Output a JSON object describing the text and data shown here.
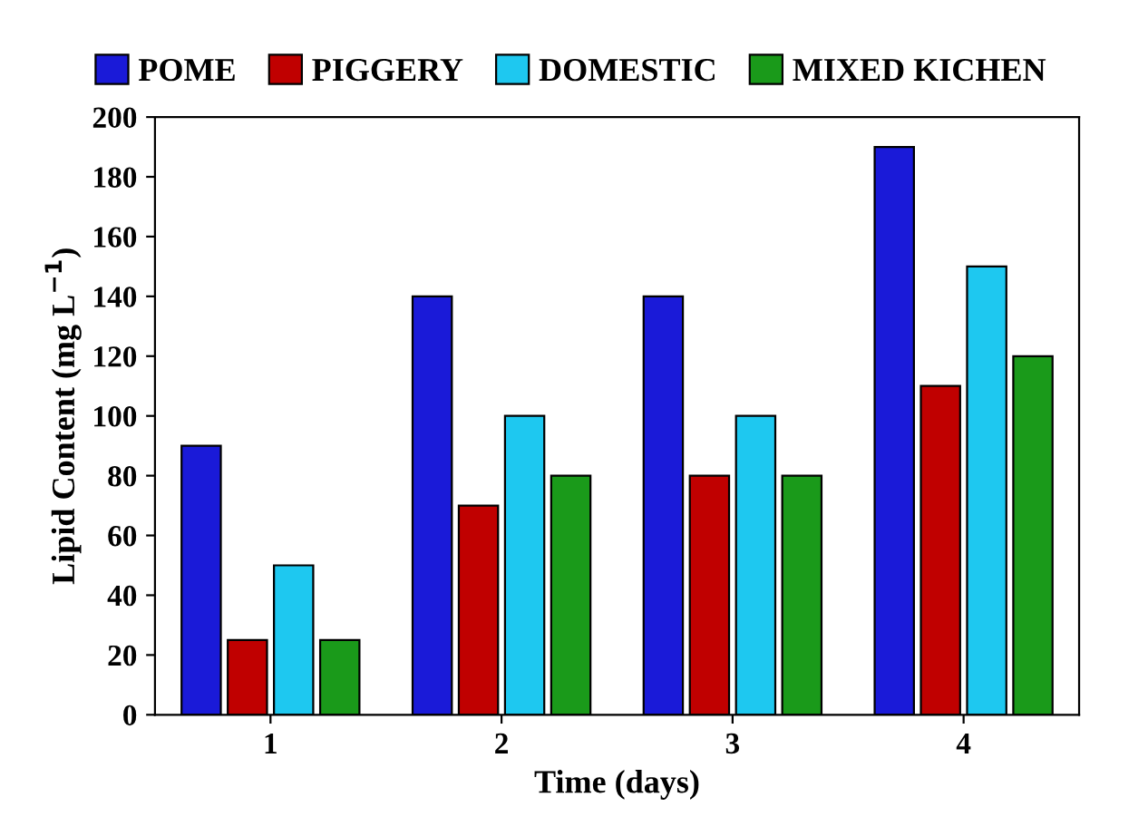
{
  "chart_data": {
    "type": "bar",
    "xlabel": "Time (days)",
    "ylabel": "Lipid Content (mg L$^{−1}$)",
    "categories": [
      "1",
      "2",
      "3",
      "4"
    ],
    "series": [
      {
        "name": "POME",
        "color": "#1a1ad8",
        "values": [
          90,
          140,
          140,
          190
        ]
      },
      {
        "name": "PIGGERY",
        "color": "#c00000",
        "values": [
          25,
          70,
          80,
          110
        ]
      },
      {
        "name": "DOMESTIC",
        "color": "#1ec8f0",
        "values": [
          50,
          100,
          100,
          150
        ]
      },
      {
        "name": "MIXED KICHEN",
        "color": "#1a9a1a",
        "values": [
          25,
          80,
          80,
          120
        ]
      }
    ],
    "ylim": [
      0,
      200
    ],
    "yticks": [
      0,
      20,
      40,
      60,
      80,
      100,
      120,
      140,
      160,
      180,
      200
    ],
    "grid": false,
    "legend": "top"
  }
}
